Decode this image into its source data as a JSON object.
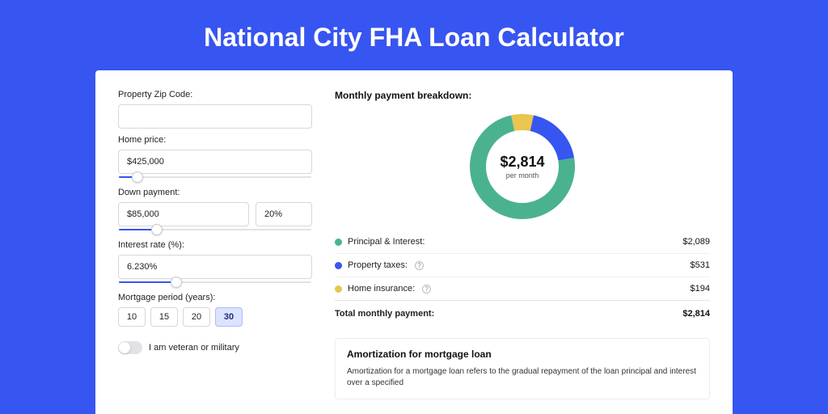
{
  "page": {
    "title": "National City FHA Loan Calculator",
    "bg_color": "#3755f0",
    "card_bg": "#ffffff"
  },
  "form": {
    "zip": {
      "label": "Property Zip Code:",
      "value": ""
    },
    "price": {
      "label": "Home price:",
      "value": "$425,000",
      "slider_pct": 10
    },
    "down": {
      "label": "Down payment:",
      "value": "$85,000",
      "pct": "20%",
      "slider_pct": 20
    },
    "rate": {
      "label": "Interest rate (%):",
      "value": "6.230%",
      "slider_pct": 30
    },
    "period": {
      "label": "Mortgage period (years):",
      "options": [
        "10",
        "15",
        "20",
        "30"
      ],
      "active": "30"
    },
    "veteran": {
      "label": "I am veteran or military",
      "on": false
    }
  },
  "breakdown": {
    "title": "Monthly payment breakdown:",
    "center_amount": "$2,814",
    "center_sub": "per month",
    "items": [
      {
        "label": "Principal & Interest:",
        "value": "$2,089",
        "num": 2089,
        "color": "#4bb28f",
        "info": false
      },
      {
        "label": "Property taxes:",
        "value": "$531",
        "num": 531,
        "color": "#3755f0",
        "info": true
      },
      {
        "label": "Home insurance:",
        "value": "$194",
        "num": 194,
        "color": "#eac54f",
        "info": true
      }
    ],
    "total_label": "Total monthly payment:",
    "total_value": "$2,814",
    "donut": {
      "size": 130,
      "thickness": 20,
      "bg": "#ffffff"
    }
  },
  "amort": {
    "title": "Amortization for mortgage loan",
    "text": "Amortization for a mortgage loan refers to the gradual repayment of the loan principal and interest over a specified"
  }
}
